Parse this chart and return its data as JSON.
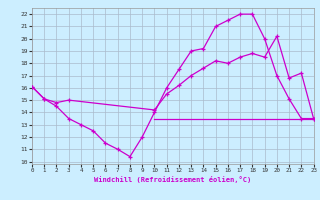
{
  "xlabel": "Windchill (Refroidissement éolien,°C)",
  "bg_color": "#cceeff",
  "line_color": "#cc00cc",
  "grid_color": "#aabbcc",
  "x_ticks": [
    0,
    1,
    2,
    3,
    4,
    5,
    6,
    7,
    8,
    9,
    10,
    11,
    12,
    13,
    14,
    15,
    16,
    17,
    18,
    19,
    20,
    21,
    22,
    23
  ],
  "y_ticks": [
    10,
    11,
    12,
    13,
    14,
    15,
    16,
    17,
    18,
    19,
    20,
    21,
    22
  ],
  "xlim": [
    0,
    23
  ],
  "ylim": [
    9.8,
    22.5
  ],
  "line1_x": [
    0,
    1,
    2,
    3,
    4,
    5,
    6,
    7,
    8,
    9,
    10,
    11,
    12,
    13,
    14,
    15,
    16,
    17,
    18,
    19,
    20,
    21,
    22,
    23
  ],
  "line1_y": [
    16.1,
    15.1,
    14.5,
    13.5,
    13.0,
    12.5,
    11.5,
    11.0,
    10.4,
    12.0,
    14.0,
    16.0,
    17.5,
    19.0,
    19.2,
    21.0,
    21.5,
    22.0,
    22.0,
    20.0,
    17.0,
    15.1,
    13.5,
    13.5
  ],
  "line2_x": [
    0,
    1,
    2,
    3,
    10,
    11,
    12,
    13,
    14,
    15,
    16,
    17,
    18,
    19,
    20,
    21,
    22,
    23
  ],
  "line2_y": [
    16.1,
    15.1,
    14.8,
    15.0,
    14.2,
    15.5,
    16.2,
    17.0,
    17.6,
    18.2,
    18.0,
    18.5,
    18.8,
    18.5,
    20.2,
    16.8,
    17.2,
    13.5
  ],
  "line3_x": [
    10,
    23
  ],
  "line3_y": [
    13.5,
    13.5
  ]
}
